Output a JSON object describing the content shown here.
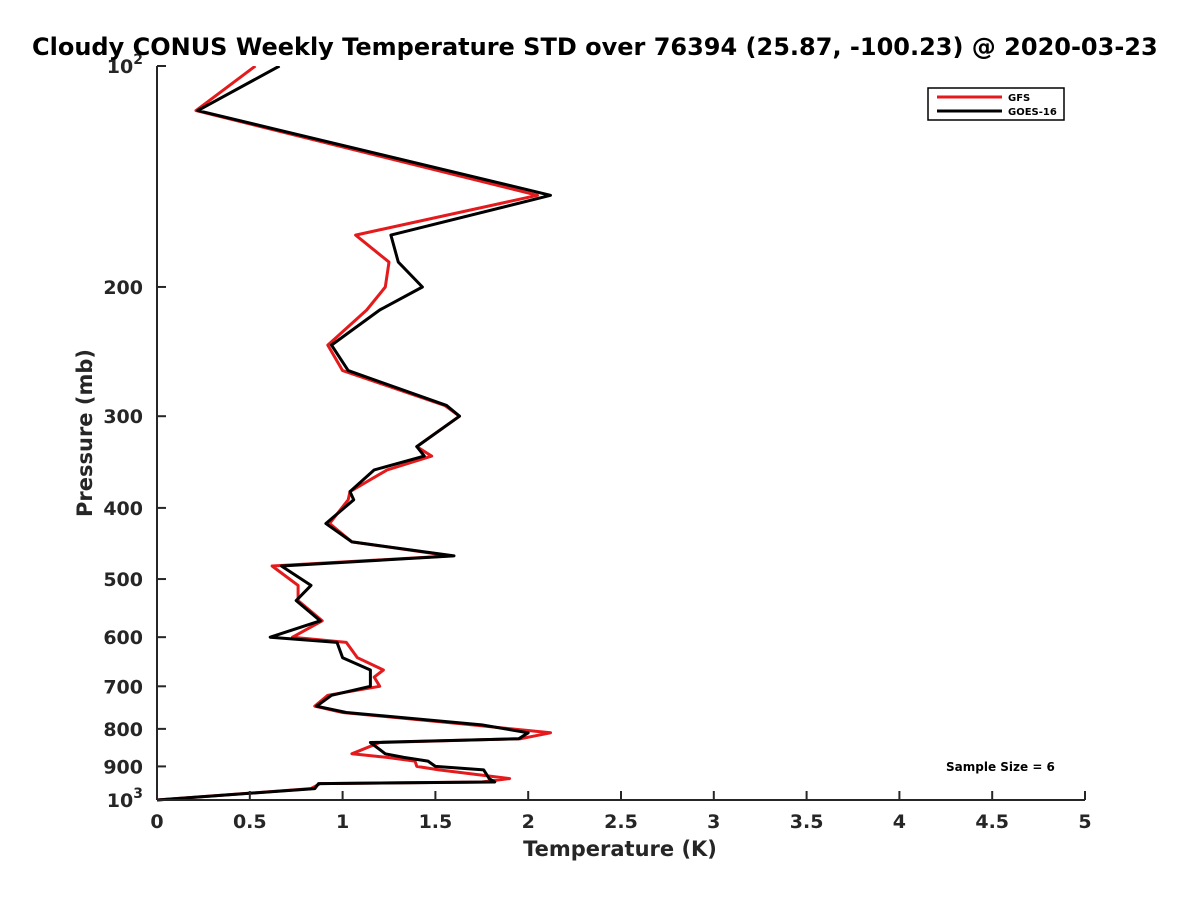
{
  "chart_data": {
    "type": "line",
    "title": "Cloudy CONUS Weekly Temperature STD over 76394 (25.87, -100.23) @ 2020-03-23",
    "xlabel": "Temperature (K)",
    "ylabel": "Pressure (mb)",
    "xlim": [
      0,
      5
    ],
    "ylim": [
      100,
      1000
    ],
    "yscale": "log",
    "yaxis_reversed": true,
    "grid": false,
    "legend_position": "top-right",
    "x_ticks": [
      0,
      0.5,
      1,
      1.5,
      2,
      2.5,
      3,
      3.5,
      4,
      4.5,
      5
    ],
    "x_tick_labels": [
      "0",
      "0.5",
      "1",
      "1.5",
      "2",
      "2.5",
      "3",
      "3.5",
      "4",
      "4.5",
      "5"
    ],
    "y_ticks": [
      100,
      200,
      300,
      400,
      500,
      600,
      700,
      800,
      900,
      1000
    ],
    "y_tick_labels": [
      {
        "base": "10",
        "exp": "2"
      },
      {
        "base": "200",
        "exp": ""
      },
      {
        "base": "300",
        "exp": ""
      },
      {
        "base": "400",
        "exp": ""
      },
      {
        "base": "500",
        "exp": ""
      },
      {
        "base": "600",
        "exp": ""
      },
      {
        "base": "700",
        "exp": ""
      },
      {
        "base": "800",
        "exp": ""
      },
      {
        "base": "900",
        "exp": ""
      },
      {
        "base": "10",
        "exp": "3"
      }
    ],
    "series": [
      {
        "name": "GFS",
        "color": "#e41a1c",
        "points": [
          [
            0.53,
            100
          ],
          [
            0.21,
            115
          ],
          [
            2.05,
            150
          ],
          [
            1.07,
            170
          ],
          [
            1.25,
            185
          ],
          [
            1.23,
            200
          ],
          [
            1.13,
            215
          ],
          [
            0.92,
            240
          ],
          [
            1.0,
            260
          ],
          [
            1.55,
            290
          ],
          [
            1.63,
            300
          ],
          [
            1.4,
            330
          ],
          [
            1.48,
            340
          ],
          [
            1.24,
            355
          ],
          [
            1.04,
            380
          ],
          [
            1.03,
            390
          ],
          [
            0.93,
            420
          ],
          [
            1.05,
            445
          ],
          [
            1.58,
            465
          ],
          [
            0.62,
            480
          ],
          [
            0.76,
            510
          ],
          [
            0.76,
            535
          ],
          [
            0.89,
            570
          ],
          [
            0.73,
            600
          ],
          [
            1.02,
            610
          ],
          [
            1.08,
            640
          ],
          [
            1.22,
            665
          ],
          [
            1.17,
            680
          ],
          [
            1.2,
            700
          ],
          [
            0.92,
            720
          ],
          [
            0.85,
            745
          ],
          [
            1.0,
            760
          ],
          [
            1.7,
            790
          ],
          [
            2.12,
            810
          ],
          [
            1.96,
            825
          ],
          [
            1.2,
            835
          ],
          [
            1.05,
            865
          ],
          [
            1.24,
            875
          ],
          [
            1.39,
            885
          ],
          [
            1.4,
            900
          ],
          [
            1.52,
            910
          ],
          [
            1.9,
            935
          ],
          [
            1.75,
            945
          ],
          [
            0.88,
            950
          ],
          [
            0.83,
            965
          ],
          [
            0.0,
            1000
          ]
        ]
      },
      {
        "name": "GOES-16",
        "color": "#000000",
        "points": [
          [
            0.66,
            100
          ],
          [
            0.22,
            115
          ],
          [
            2.12,
            150
          ],
          [
            1.26,
            170
          ],
          [
            1.3,
            185
          ],
          [
            1.43,
            200
          ],
          [
            1.2,
            215
          ],
          [
            0.94,
            240
          ],
          [
            1.03,
            260
          ],
          [
            1.56,
            290
          ],
          [
            1.63,
            300
          ],
          [
            1.4,
            330
          ],
          [
            1.44,
            340
          ],
          [
            1.17,
            355
          ],
          [
            1.04,
            380
          ],
          [
            1.06,
            390
          ],
          [
            0.91,
            420
          ],
          [
            1.05,
            445
          ],
          [
            1.6,
            465
          ],
          [
            0.67,
            480
          ],
          [
            0.83,
            510
          ],
          [
            0.75,
            535
          ],
          [
            0.88,
            570
          ],
          [
            0.61,
            600
          ],
          [
            0.97,
            610
          ],
          [
            1.0,
            640
          ],
          [
            1.15,
            665
          ],
          [
            1.15,
            680
          ],
          [
            1.15,
            700
          ],
          [
            0.94,
            720
          ],
          [
            0.86,
            745
          ],
          [
            1.02,
            760
          ],
          [
            1.75,
            790
          ],
          [
            2.0,
            810
          ],
          [
            1.95,
            825
          ],
          [
            1.15,
            835
          ],
          [
            1.23,
            865
          ],
          [
            1.33,
            875
          ],
          [
            1.46,
            885
          ],
          [
            1.5,
            900
          ],
          [
            1.76,
            910
          ],
          [
            1.79,
            935
          ],
          [
            1.82,
            945
          ],
          [
            0.87,
            950
          ],
          [
            0.85,
            965
          ],
          [
            0.0,
            1000
          ]
        ]
      }
    ],
    "legend": {
      "entries": [
        {
          "label": "GFS",
          "color": "#e41a1c"
        },
        {
          "label": "GOES-16",
          "color": "#000000"
        }
      ]
    },
    "annotation": "Sample Size = 6"
  }
}
